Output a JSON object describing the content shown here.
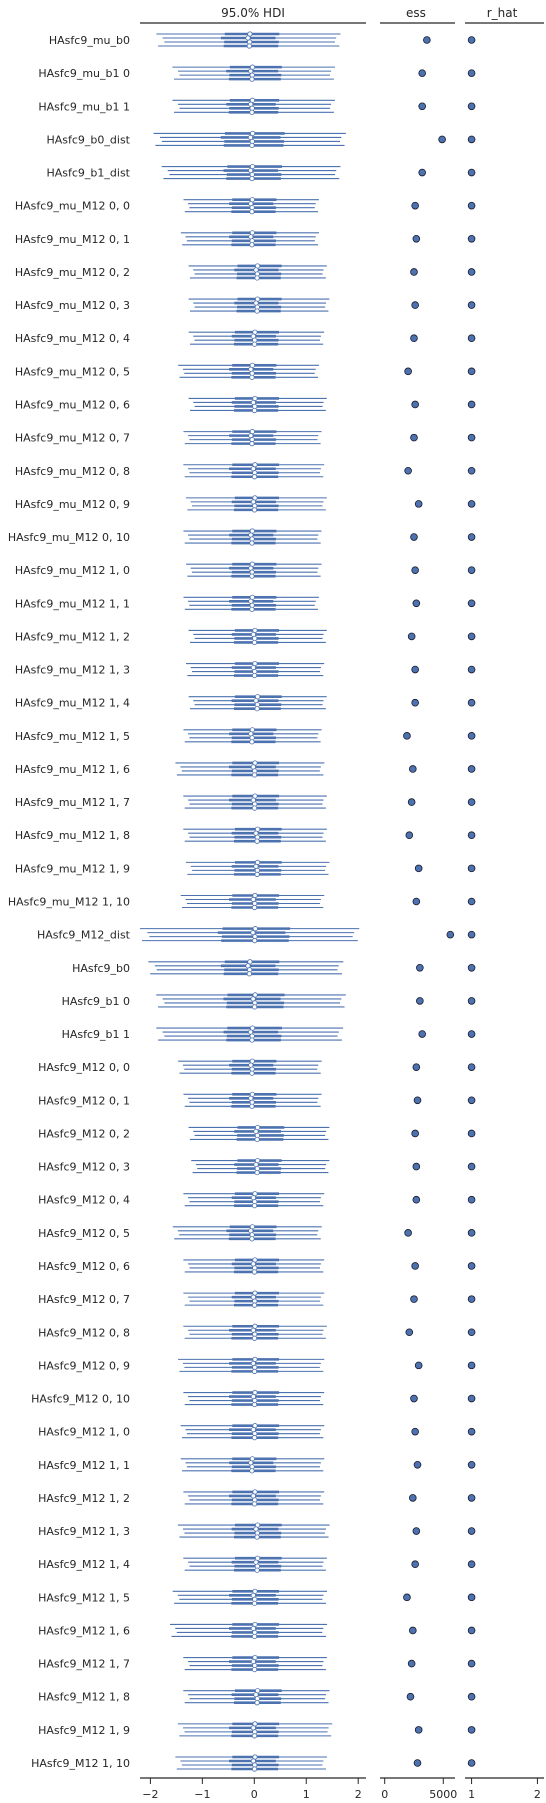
{
  "chart_data": [
    {
      "type": "forest",
      "title": "95.0% HDI",
      "x_ticks": [
        "−2",
        "−1",
        "0",
        "1",
        "2"
      ],
      "xlim": [
        -2.2,
        2.15
      ],
      "chains": 4,
      "color": "#4c72b0",
      "labels": [
        "HAsfc9_mu_b0",
        "HAsfc9_mu_b1 0",
        "HAsfc9_mu_b1 1",
        "HAsfc9_b0_dist",
        "HAsfc9_b1_dist",
        "HAsfc9_mu_M12 0, 0",
        "HAsfc9_mu_M12 0, 1",
        "HAsfc9_mu_M12 0, 2",
        "HAsfc9_mu_M12 0, 3",
        "HAsfc9_mu_M12 0, 4",
        "HAsfc9_mu_M12 0, 5",
        "HAsfc9_mu_M12 0, 6",
        "HAsfc9_mu_M12 0, 7",
        "HAsfc9_mu_M12 0, 8",
        "HAsfc9_mu_M12 0, 9",
        "HAsfc9_mu_M12 0, 10",
        "HAsfc9_mu_M12 1, 0",
        "HAsfc9_mu_M12 1, 1",
        "HAsfc9_mu_M12 1, 2",
        "HAsfc9_mu_M12 1, 3",
        "HAsfc9_mu_M12 1, 4",
        "HAsfc9_mu_M12 1, 5",
        "HAsfc9_mu_M12 1, 6",
        "HAsfc9_mu_M12 1, 7",
        "HAsfc9_mu_M12 1, 8",
        "HAsfc9_mu_M12 1, 9",
        "HAsfc9_mu_M12 1, 10",
        "HAsfc9_M12_dist",
        "HAsfc9_b0",
        "HAsfc9_b1 0",
        "HAsfc9_b1 1",
        "HAsfc9_M12 0, 0",
        "HAsfc9_M12 0, 1",
        "HAsfc9_M12 0, 2",
        "HAsfc9_M12 0, 3",
        "HAsfc9_M12 0, 4",
        "HAsfc9_M12 0, 5",
        "HAsfc9_M12 0, 6",
        "HAsfc9_M12 0, 7",
        "HAsfc9_M12 0, 8",
        "HAsfc9_M12 0, 9",
        "HAsfc9_M12 0, 10",
        "HAsfc9_M12 1, 0",
        "HAsfc9_M12 1, 1",
        "HAsfc9_M12 1, 2",
        "HAsfc9_M12 1, 3",
        "HAsfc9_M12 1, 4",
        "HAsfc9_M12 1, 5",
        "HAsfc9_M12 1, 6",
        "HAsfc9_M12 1, 7",
        "HAsfc9_M12 1, 8",
        "HAsfc9_M12 1, 9",
        "HAsfc9_M12 1, 10"
      ],
      "intervals_95": [
        [
          -1.8,
          1.6
        ],
        [
          -1.5,
          1.5
        ],
        [
          -1.5,
          1.5
        ],
        [
          -1.85,
          1.7
        ],
        [
          -1.7,
          1.6
        ],
        [
          -1.3,
          1.2
        ],
        [
          -1.35,
          1.2
        ],
        [
          -1.2,
          1.35
        ],
        [
          -1.2,
          1.4
        ],
        [
          -1.2,
          1.3
        ],
        [
          -1.4,
          1.2
        ],
        [
          -1.2,
          1.35
        ],
        [
          -1.3,
          1.25
        ],
        [
          -1.3,
          1.3
        ],
        [
          -1.25,
          1.35
        ],
        [
          -1.3,
          1.25
        ],
        [
          -1.25,
          1.25
        ],
        [
          -1.3,
          1.2
        ],
        [
          -1.2,
          1.35
        ],
        [
          -1.25,
          1.3
        ],
        [
          -1.2,
          1.35
        ],
        [
          -1.3,
          1.25
        ],
        [
          -1.45,
          1.3
        ],
        [
          -1.3,
          1.35
        ],
        [
          -1.3,
          1.35
        ],
        [
          -1.25,
          1.4
        ],
        [
          -1.35,
          1.3
        ],
        [
          -2.1,
          1.95
        ],
        [
          -1.95,
          1.65
        ],
        [
          -1.8,
          1.7
        ],
        [
          -1.8,
          1.65
        ],
        [
          -1.4,
          1.25
        ],
        [
          -1.3,
          1.25
        ],
        [
          -1.2,
          1.4
        ],
        [
          -1.15,
          1.4
        ],
        [
          -1.3,
          1.3
        ],
        [
          -1.5,
          1.25
        ],
        [
          -1.3,
          1.3
        ],
        [
          -1.3,
          1.3
        ],
        [
          -1.3,
          1.35
        ],
        [
          -1.4,
          1.3
        ],
        [
          -1.3,
          1.3
        ],
        [
          -1.35,
          1.3
        ],
        [
          -1.35,
          1.3
        ],
        [
          -1.3,
          1.3
        ],
        [
          -1.4,
          1.4
        ],
        [
          -1.3,
          1.35
        ],
        [
          -1.5,
          1.35
        ],
        [
          -1.55,
          1.35
        ],
        [
          -1.3,
          1.35
        ],
        [
          -1.3,
          1.4
        ],
        [
          -1.4,
          1.45
        ],
        [
          -1.45,
          1.35
        ]
      ],
      "intervals_50": [
        [
          -0.6,
          0.45
        ],
        [
          -0.5,
          0.5
        ],
        [
          -0.5,
          0.45
        ],
        [
          -0.6,
          0.55
        ],
        [
          -0.55,
          0.5
        ],
        [
          -0.45,
          0.4
        ],
        [
          -0.45,
          0.4
        ],
        [
          -0.35,
          0.5
        ],
        [
          -0.35,
          0.5
        ],
        [
          -0.4,
          0.45
        ],
        [
          -0.45,
          0.4
        ],
        [
          -0.4,
          0.45
        ],
        [
          -0.45,
          0.4
        ],
        [
          -0.45,
          0.45
        ],
        [
          -0.4,
          0.45
        ],
        [
          -0.45,
          0.4
        ],
        [
          -0.45,
          0.4
        ],
        [
          -0.45,
          0.4
        ],
        [
          -0.4,
          0.45
        ],
        [
          -0.4,
          0.45
        ],
        [
          -0.4,
          0.5
        ],
        [
          -0.45,
          0.4
        ],
        [
          -0.45,
          0.45
        ],
        [
          -0.45,
          0.45
        ],
        [
          -0.4,
          0.5
        ],
        [
          -0.4,
          0.5
        ],
        [
          -0.45,
          0.45
        ],
        [
          -0.65,
          0.65
        ],
        [
          -0.6,
          0.45
        ],
        [
          -0.55,
          0.55
        ],
        [
          -0.55,
          0.5
        ],
        [
          -0.45,
          0.4
        ],
        [
          -0.45,
          0.4
        ],
        [
          -0.35,
          0.55
        ],
        [
          -0.35,
          0.5
        ],
        [
          -0.4,
          0.45
        ],
        [
          -0.5,
          0.4
        ],
        [
          -0.4,
          0.45
        ],
        [
          -0.4,
          0.45
        ],
        [
          -0.45,
          0.45
        ],
        [
          -0.45,
          0.45
        ],
        [
          -0.45,
          0.45
        ],
        [
          -0.45,
          0.45
        ],
        [
          -0.45,
          0.4
        ],
        [
          -0.45,
          0.45
        ],
        [
          -0.4,
          0.5
        ],
        [
          -0.4,
          0.5
        ],
        [
          -0.45,
          0.45
        ],
        [
          -0.45,
          0.45
        ],
        [
          -0.45,
          0.45
        ],
        [
          -0.4,
          0.5
        ],
        [
          -0.45,
          0.45
        ],
        [
          -0.45,
          0.45
        ]
      ],
      "medians": [
        -0.1,
        -0.05,
        -0.05,
        -0.05,
        -0.05,
        -0.05,
        -0.05,
        0.05,
        0.05,
        0.0,
        -0.05,
        0.0,
        -0.05,
        0.0,
        0.0,
        -0.05,
        -0.05,
        -0.05,
        0.0,
        0.0,
        0.05,
        -0.05,
        0.0,
        0.0,
        0.05,
        0.05,
        0.0,
        0.0,
        -0.1,
        0.0,
        -0.05,
        -0.05,
        -0.05,
        0.05,
        0.05,
        0.0,
        -0.05,
        0.0,
        0.0,
        0.0,
        0.0,
        0.0,
        0.0,
        -0.05,
        0.0,
        0.05,
        0.05,
        0.0,
        0.0,
        0.0,
        0.05,
        0.0,
        0.0
      ]
    },
    {
      "type": "scatter",
      "title": "ess",
      "x_ticks": [
        "0",
        "5000"
      ],
      "xlim": [
        -400,
        6000
      ],
      "values": [
        3600,
        3200,
        3200,
        4900,
        3200,
        2600,
        2700,
        2500,
        2600,
        2500,
        2000,
        2600,
        2500,
        2000,
        2900,
        2500,
        2600,
        2700,
        2300,
        2600,
        2600,
        1900,
        2400,
        2300,
        2100,
        2900,
        2700,
        5600,
        3000,
        3000,
        3200,
        2700,
        2800,
        2600,
        2700,
        2700,
        2000,
        2600,
        2500,
        2100,
        2900,
        2500,
        2600,
        2800,
        2400,
        2700,
        2600,
        1900,
        2400,
        2300,
        2200,
        2900,
        2800
      ],
      "color": "#4c72b0"
    },
    {
      "type": "scatter",
      "title": "r_hat",
      "x_ticks": [
        "1",
        "2"
      ],
      "xlim": [
        0.9,
        2.1
      ],
      "values": [
        1.0,
        1.0,
        1.0,
        1.0,
        1.0,
        1.0,
        1.0,
        1.0,
        1.0,
        1.0,
        1.0,
        1.0,
        1.0,
        1.0,
        1.0,
        1.0,
        1.0,
        1.0,
        1.0,
        1.0,
        1.0,
        1.0,
        1.0,
        1.0,
        1.0,
        1.0,
        1.0,
        1.0,
        1.0,
        1.0,
        1.0,
        1.0,
        1.0,
        1.0,
        1.0,
        1.0,
        1.0,
        1.0,
        1.0,
        1.0,
        1.0,
        1.0,
        1.0,
        1.0,
        1.0,
        1.0,
        1.0,
        1.0,
        1.0,
        1.0,
        1.0,
        1.0,
        1.0
      ],
      "color": "#4c72b0"
    }
  ]
}
